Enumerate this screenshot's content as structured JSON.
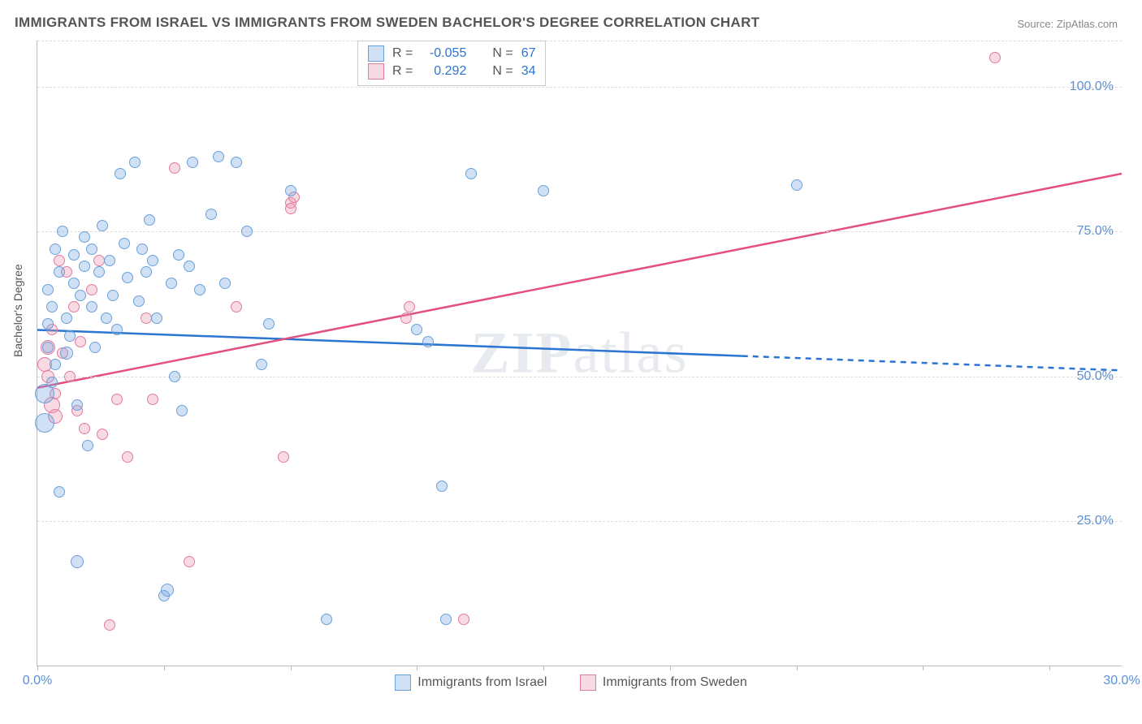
{
  "title": "IMMIGRANTS FROM ISRAEL VS IMMIGRANTS FROM SWEDEN BACHELOR'S DEGREE CORRELATION CHART",
  "source": "Source: ZipAtlas.com",
  "watermark": "ZIPatlas",
  "ylabel": "Bachelor's Degree",
  "chart": {
    "type": "scatter",
    "xlim": [
      0,
      30
    ],
    "ylim": [
      0,
      108
    ],
    "xtick_labels": [
      "0.0%",
      "30.0%"
    ],
    "xtick_positions": [
      0,
      30
    ],
    "xtick_minor": [
      0,
      3.5,
      7,
      10.5,
      14,
      17.5,
      21,
      24.5,
      28
    ],
    "ytick_labels": [
      "25.0%",
      "50.0%",
      "75.0%",
      "100.0%"
    ],
    "ytick_positions": [
      25,
      50,
      75,
      100
    ],
    "grid_y": [
      25,
      50,
      75,
      100,
      108
    ],
    "background_color": "#ffffff",
    "grid_color": "#dddddd",
    "axis_color": "#bbbbbb"
  },
  "series": {
    "israel": {
      "label": "Immigrants from Israel",
      "fill": "rgba(120,170,225,0.35)",
      "stroke": "#6aa0d8",
      "line_color": "#2a75d1",
      "R": "-0.055",
      "N": "67",
      "regression": {
        "x0": 0,
        "y0": 58,
        "x1": 19.5,
        "y1": 53.5,
        "x2": 30,
        "y2": 51
      },
      "points": [
        {
          "x": 0.2,
          "y": 47,
          "r": 12
        },
        {
          "x": 0.2,
          "y": 42,
          "r": 12
        },
        {
          "x": 0.3,
          "y": 55,
          "r": 7
        },
        {
          "x": 0.3,
          "y": 59,
          "r": 7
        },
        {
          "x": 0.4,
          "y": 62,
          "r": 7
        },
        {
          "x": 0.4,
          "y": 49,
          "r": 7
        },
        {
          "x": 0.5,
          "y": 52,
          "r": 7
        },
        {
          "x": 0.5,
          "y": 72,
          "r": 7
        },
        {
          "x": 0.6,
          "y": 68,
          "r": 7
        },
        {
          "x": 0.6,
          "y": 30,
          "r": 7
        },
        {
          "x": 0.7,
          "y": 75,
          "r": 7
        },
        {
          "x": 0.8,
          "y": 54,
          "r": 8
        },
        {
          "x": 0.8,
          "y": 60,
          "r": 7
        },
        {
          "x": 0.9,
          "y": 57,
          "r": 7
        },
        {
          "x": 1.0,
          "y": 66,
          "r": 7
        },
        {
          "x": 1.0,
          "y": 71,
          "r": 7
        },
        {
          "x": 1.1,
          "y": 45,
          "r": 7
        },
        {
          "x": 1.1,
          "y": 18,
          "r": 8
        },
        {
          "x": 1.2,
          "y": 64,
          "r": 7
        },
        {
          "x": 1.3,
          "y": 69,
          "r": 7
        },
        {
          "x": 1.3,
          "y": 74,
          "r": 7
        },
        {
          "x": 1.4,
          "y": 38,
          "r": 7
        },
        {
          "x": 1.5,
          "y": 62,
          "r": 7
        },
        {
          "x": 1.5,
          "y": 72,
          "r": 7
        },
        {
          "x": 1.6,
          "y": 55,
          "r": 7
        },
        {
          "x": 1.7,
          "y": 68,
          "r": 7
        },
        {
          "x": 1.8,
          "y": 76,
          "r": 7
        },
        {
          "x": 1.9,
          "y": 60,
          "r": 7
        },
        {
          "x": 2.0,
          "y": 70,
          "r": 7
        },
        {
          "x": 2.1,
          "y": 64,
          "r": 7
        },
        {
          "x": 2.2,
          "y": 58,
          "r": 7
        },
        {
          "x": 2.3,
          "y": 85,
          "r": 7
        },
        {
          "x": 2.4,
          "y": 73,
          "r": 7
        },
        {
          "x": 2.5,
          "y": 67,
          "r": 7
        },
        {
          "x": 2.7,
          "y": 87,
          "r": 7
        },
        {
          "x": 2.8,
          "y": 63,
          "r": 7
        },
        {
          "x": 2.9,
          "y": 72,
          "r": 7
        },
        {
          "x": 3.0,
          "y": 68,
          "r": 7
        },
        {
          "x": 3.1,
          "y": 77,
          "r": 7
        },
        {
          "x": 3.2,
          "y": 70,
          "r": 7
        },
        {
          "x": 3.3,
          "y": 60,
          "r": 7
        },
        {
          "x": 3.5,
          "y": 12,
          "r": 7
        },
        {
          "x": 3.6,
          "y": 13,
          "r": 8
        },
        {
          "x": 3.7,
          "y": 66,
          "r": 7
        },
        {
          "x": 3.8,
          "y": 50,
          "r": 7
        },
        {
          "x": 3.9,
          "y": 71,
          "r": 7
        },
        {
          "x": 4.0,
          "y": 44,
          "r": 7
        },
        {
          "x": 4.2,
          "y": 69,
          "r": 7
        },
        {
          "x": 4.3,
          "y": 87,
          "r": 7
        },
        {
          "x": 4.5,
          "y": 65,
          "r": 7
        },
        {
          "x": 4.8,
          "y": 78,
          "r": 7
        },
        {
          "x": 5.0,
          "y": 88,
          "r": 7
        },
        {
          "x": 5.2,
          "y": 66,
          "r": 7
        },
        {
          "x": 5.5,
          "y": 87,
          "r": 7
        },
        {
          "x": 5.8,
          "y": 75,
          "r": 7
        },
        {
          "x": 6.2,
          "y": 52,
          "r": 7
        },
        {
          "x": 6.4,
          "y": 59,
          "r": 7
        },
        {
          "x": 7.0,
          "y": 82,
          "r": 7
        },
        {
          "x": 8.0,
          "y": 8,
          "r": 7
        },
        {
          "x": 10.5,
          "y": 58,
          "r": 7
        },
        {
          "x": 10.8,
          "y": 56,
          "r": 7
        },
        {
          "x": 11.2,
          "y": 31,
          "r": 7
        },
        {
          "x": 11.3,
          "y": 8,
          "r": 7
        },
        {
          "x": 12.0,
          "y": 85,
          "r": 7
        },
        {
          "x": 14.0,
          "y": 82,
          "r": 7
        },
        {
          "x": 21.0,
          "y": 83,
          "r": 7
        },
        {
          "x": 0.3,
          "y": 65,
          "r": 7
        }
      ]
    },
    "sweden": {
      "label": "Immigrants from Sweden",
      "fill": "rgba(235,150,175,0.35)",
      "stroke": "#e07ba0",
      "line_color": "#e3507d",
      "R": "0.292",
      "N": "34",
      "regression": {
        "x0": 0,
        "y0": 48,
        "x1": 30,
        "y1": 85
      },
      "points": [
        {
          "x": 0.2,
          "y": 52,
          "r": 9
        },
        {
          "x": 0.3,
          "y": 55,
          "r": 9
        },
        {
          "x": 0.3,
          "y": 50,
          "r": 8
        },
        {
          "x": 0.4,
          "y": 58,
          "r": 7
        },
        {
          "x": 0.4,
          "y": 45,
          "r": 10
        },
        {
          "x": 0.5,
          "y": 47,
          "r": 7
        },
        {
          "x": 0.5,
          "y": 43,
          "r": 9
        },
        {
          "x": 0.6,
          "y": 70,
          "r": 7
        },
        {
          "x": 0.7,
          "y": 54,
          "r": 7
        },
        {
          "x": 0.8,
          "y": 68,
          "r": 7
        },
        {
          "x": 0.9,
          "y": 50,
          "r": 7
        },
        {
          "x": 1.0,
          "y": 62,
          "r": 7
        },
        {
          "x": 1.1,
          "y": 44,
          "r": 7
        },
        {
          "x": 1.2,
          "y": 56,
          "r": 7
        },
        {
          "x": 1.3,
          "y": 41,
          "r": 7
        },
        {
          "x": 1.5,
          "y": 65,
          "r": 7
        },
        {
          "x": 1.7,
          "y": 70,
          "r": 7
        },
        {
          "x": 1.8,
          "y": 40,
          "r": 7
        },
        {
          "x": 2.0,
          "y": 7,
          "r": 7
        },
        {
          "x": 2.2,
          "y": 46,
          "r": 7
        },
        {
          "x": 2.5,
          "y": 36,
          "r": 7
        },
        {
          "x": 3.0,
          "y": 60,
          "r": 7
        },
        {
          "x": 3.2,
          "y": 46,
          "r": 7
        },
        {
          "x": 3.8,
          "y": 86,
          "r": 7
        },
        {
          "x": 4.2,
          "y": 18,
          "r": 7
        },
        {
          "x": 5.5,
          "y": 62,
          "r": 7
        },
        {
          "x": 6.8,
          "y": 36,
          "r": 7
        },
        {
          "x": 7.0,
          "y": 80,
          "r": 7
        },
        {
          "x": 7.0,
          "y": 79,
          "r": 7
        },
        {
          "x": 7.1,
          "y": 81,
          "r": 7
        },
        {
          "x": 10.2,
          "y": 60,
          "r": 7
        },
        {
          "x": 10.3,
          "y": 62,
          "r": 7
        },
        {
          "x": 11.8,
          "y": 8,
          "r": 7
        },
        {
          "x": 26.5,
          "y": 105,
          "r": 7
        }
      ]
    }
  },
  "legend_top": {
    "r_label": "R =",
    "n_label": "N ="
  }
}
